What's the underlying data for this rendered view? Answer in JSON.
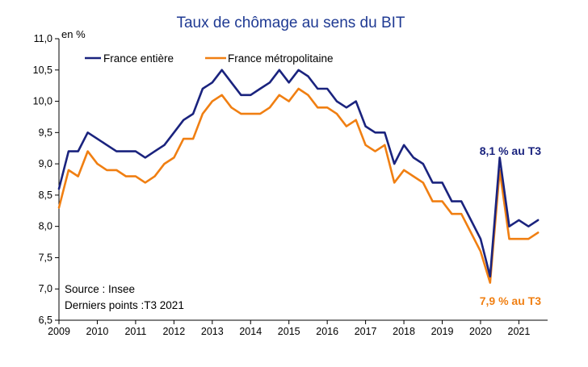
{
  "chart_data": {
    "type": "line",
    "title": "Taux de chômage au sens du BIT",
    "ylabel": "en %",
    "xlabel": "",
    "ylim": [
      6.5,
      11.0
    ],
    "yticks": [
      "6,5",
      "7,0",
      "7,5",
      "8,0",
      "8,5",
      "9,0",
      "9,5",
      "10,0",
      "10,5",
      "11,0"
    ],
    "xticks": [
      "2009",
      "2010",
      "2011",
      "2012",
      "2013",
      "2014",
      "2015",
      "2016",
      "2017",
      "2018",
      "2019",
      "2020",
      "2021"
    ],
    "x_start_year": 2009,
    "grid": false,
    "legend_position": "top-left",
    "series": [
      {
        "name": "France entière",
        "color": "#1a237e",
        "values": [
          8.6,
          9.2,
          9.2,
          9.5,
          9.4,
          9.3,
          9.2,
          9.2,
          9.2,
          9.1,
          9.2,
          9.3,
          9.5,
          9.7,
          9.8,
          10.2,
          10.3,
          10.5,
          10.3,
          10.1,
          10.1,
          10.2,
          10.3,
          10.5,
          10.3,
          10.5,
          10.4,
          10.2,
          10.2,
          10.0,
          9.9,
          10.0,
          9.6,
          9.5,
          9.5,
          9.0,
          9.3,
          9.1,
          9.0,
          8.7,
          8.7,
          8.4,
          8.4,
          8.1,
          7.8,
          7.2,
          9.1,
          8.0,
          8.1,
          8.0,
          8.1
        ]
      },
      {
        "name": "France métropolitaine",
        "color": "#F07F12",
        "values": [
          8.3,
          8.9,
          8.8,
          9.2,
          9.0,
          8.9,
          8.9,
          8.8,
          8.8,
          8.7,
          8.8,
          9.0,
          9.1,
          9.4,
          9.4,
          9.8,
          10.0,
          10.1,
          9.9,
          9.8,
          9.8,
          9.8,
          9.9,
          10.1,
          10.0,
          10.2,
          10.1,
          9.9,
          9.9,
          9.8,
          9.6,
          9.7,
          9.3,
          9.2,
          9.3,
          8.7,
          8.9,
          8.8,
          8.7,
          8.4,
          8.4,
          8.2,
          8.2,
          7.9,
          7.6,
          7.1,
          8.9,
          7.8,
          7.8,
          7.8,
          7.9
        ]
      }
    ],
    "annotations": {
      "france_entiere": "8,1 % au T3",
      "france_metro": "7,9 % au T3"
    },
    "source": "Source : Insee",
    "last_points": "Derniers points :T3 2021"
  }
}
